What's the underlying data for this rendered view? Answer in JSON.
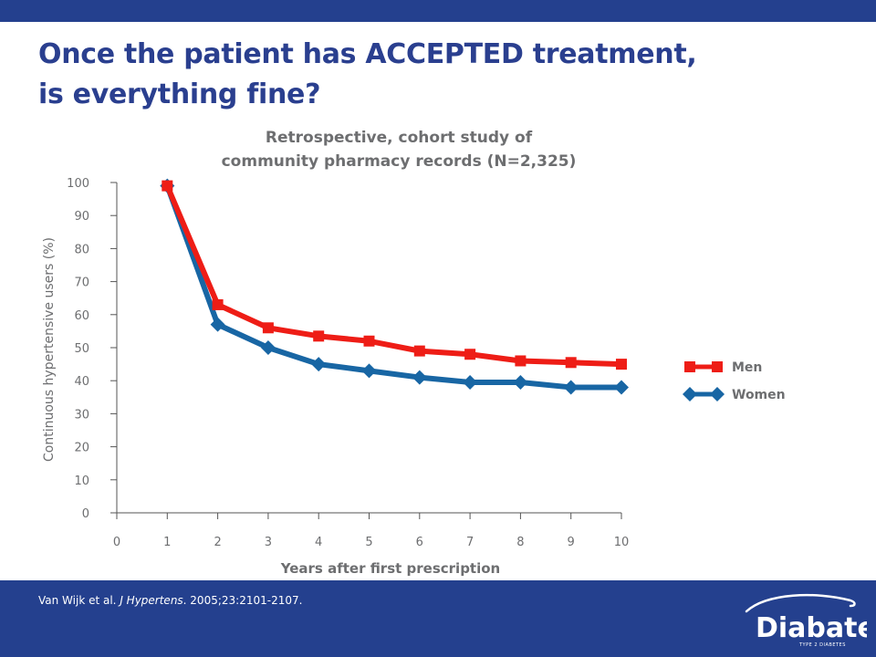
{
  "header": {
    "title_line1": "Once the patient has ACCEPTED treatment,",
    "title_line2": "is everything fine?"
  },
  "colors": {
    "brand_blue": "#24408e",
    "title_blue": "#2a3f8f",
    "men": "#ee1d16",
    "women": "#1866a4",
    "axis_text": "#6d6e70"
  },
  "chart_data": {
    "type": "line",
    "title": "Retrospective, cohort study of community pharmacy records (N=2,325)",
    "title_line1": "Retrospective, cohort study of",
    "title_line2": "community pharmacy records (N=2,325)",
    "xlabel": "Years after first prescription",
    "ylabel": "Continuous hypertensive users (%)",
    "xlim": [
      0,
      10
    ],
    "ylim": [
      0,
      100
    ],
    "x_ticks": [
      "0",
      "1",
      "2",
      "3",
      "4",
      "5",
      "6",
      "7",
      "8",
      "9",
      "10"
    ],
    "y_ticks": [
      "0",
      "10",
      "20",
      "30",
      "40",
      "50",
      "60",
      "70",
      "80",
      "90",
      "100"
    ],
    "grid": false,
    "legend_position": "right",
    "series": [
      {
        "name": "Men",
        "marker": "square",
        "x": [
          1,
          2,
          3,
          4,
          5,
          6,
          7,
          8,
          9,
          10
        ],
        "values": [
          99,
          63,
          56,
          53.5,
          52,
          49,
          48,
          46,
          45.5,
          45
        ]
      },
      {
        "name": "Women",
        "marker": "diamond",
        "x": [
          1,
          2,
          3,
          4,
          5,
          6,
          7,
          8,
          9,
          10
        ],
        "values": [
          99,
          57,
          50,
          45,
          43,
          41,
          39.5,
          39.5,
          38,
          38
        ]
      }
    ]
  },
  "footer": {
    "citation_authors": "Van Wijk et al. ",
    "citation_journal": "J Hypertens",
    "citation_rest": ". 2005;23:2101-2107.",
    "logo_text": "Diabate",
    "logo_tagline": "TYPE 2 DIABETES"
  }
}
